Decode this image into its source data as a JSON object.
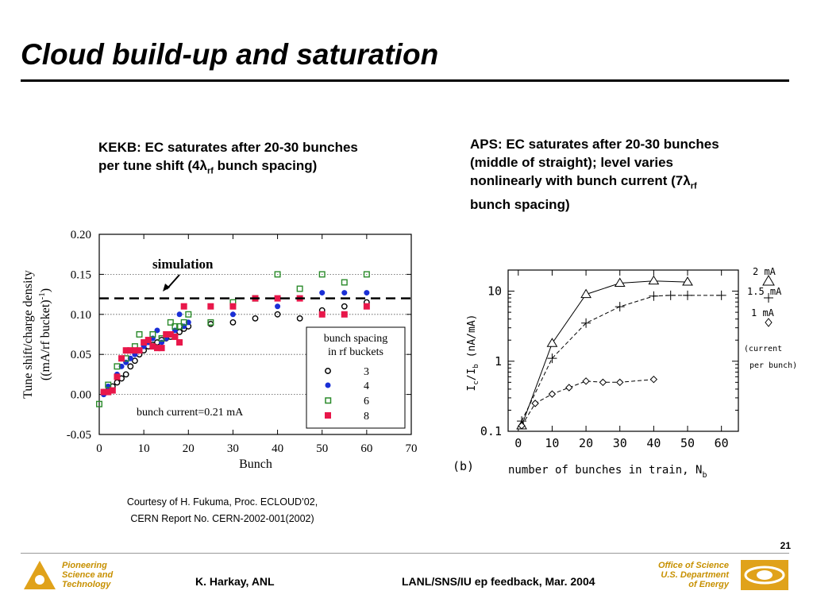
{
  "slide": {
    "title": "Cloud build-up and saturation",
    "caption_left_line1": "KEKB: EC saturates after 20-30 bunches",
    "caption_left_line2_pre": "per tune shift (4",
    "caption_left_lambda": "λ",
    "caption_left_sub": "rf",
    "caption_left_line2_post": " bunch spacing)",
    "caption_right_line1": "APS: EC saturates after 20-30 bunches",
    "caption_right_line2": "(middle of straight); level varies",
    "caption_right_line3_pre": "nonlinearly with bunch current (7",
    "caption_right_lambda": "λ",
    "caption_right_sub": "rf",
    "caption_right_line4": "bunch spacing)",
    "courtesy_line1": "Courtesy of H. Fukuma, Proc. ECLOUD’02,",
    "courtesy_line2": "CERN Report No. CERN-2002-001(2002)"
  },
  "footer": {
    "page_number": "21",
    "org_line1": "Pioneering",
    "org_line2": "Science and",
    "org_line3": "Technology",
    "author": "K. Harkay, ANL",
    "event": "LANL/SNS/IU ep feedback, Mar. 2004",
    "doe_line1": "Office of Science",
    "doe_line2": "U.S. Department",
    "doe_line3": "of Energy"
  },
  "chart_data": [
    {
      "type": "scatter",
      "xlabel": "Bunch",
      "ylabel_line1": "Tune shift/charge density",
      "ylabel_line2_pre": "((mA/rf bucket)",
      "ylabel_sup": "-1",
      "ylabel_line2_post": ")",
      "xlim": [
        0,
        70
      ],
      "ylim": [
        -0.05,
        0.2
      ],
      "x_ticks": [
        "0",
        "10",
        "20",
        "30",
        "40",
        "50",
        "60",
        "70"
      ],
      "y_ticks": [
        "0.20",
        "0.15",
        "0.10",
        "0.05",
        "0.00",
        "-0.05"
      ],
      "grid": "dotted horizontal",
      "simulation_level": 0.12,
      "annotation_simulation": "simulation",
      "annotation_current": "bunch current=0.21 mA",
      "legend_title_line1": "bunch spacing",
      "legend_title_line2": "in rf buckets",
      "legend_position": "lower-right",
      "series": [
        {
          "name": "3",
          "marker": "open-circle",
          "color": "#000000",
          "points": [
            [
              1,
              0.003
            ],
            [
              2,
              0.005
            ],
            [
              3,
              0.01
            ],
            [
              4,
              0.015
            ],
            [
              5,
              0.02
            ],
            [
              6,
              0.025
            ],
            [
              7,
              0.035
            ],
            [
              8,
              0.042
            ],
            [
              9,
              0.05
            ],
            [
              10,
              0.055
            ],
            [
              11,
              0.06
            ],
            [
              12,
              0.062
            ],
            [
              13,
              0.065
            ],
            [
              14,
              0.068
            ],
            [
              15,
              0.07
            ],
            [
              16,
              0.072
            ],
            [
              17,
              0.075
            ],
            [
              18,
              0.078
            ],
            [
              19,
              0.082
            ],
            [
              20,
              0.085
            ],
            [
              25,
              0.088
            ],
            [
              30,
              0.09
            ],
            [
              35,
              0.095
            ],
            [
              40,
              0.1
            ],
            [
              45,
              0.095
            ],
            [
              50,
              0.105
            ],
            [
              55,
              0.11
            ],
            [
              60,
              0.115
            ]
          ]
        },
        {
          "name": "4",
          "marker": "filled-circle",
          "color": "#1a2fd6",
          "points": [
            [
              1,
              0.0
            ],
            [
              2,
              0.01
            ],
            [
              4,
              0.025
            ],
            [
              5,
              0.035
            ],
            [
              6,
              0.04
            ],
            [
              7,
              0.045
            ],
            [
              8,
              0.05
            ],
            [
              9,
              0.055
            ],
            [
              10,
              0.06
            ],
            [
              11,
              0.065
            ],
            [
              12,
              0.07
            ],
            [
              13,
              0.08
            ],
            [
              14,
              0.065
            ],
            [
              15,
              0.07
            ],
            [
              16,
              0.075
            ],
            [
              17,
              0.08
            ],
            [
              18,
              0.1
            ],
            [
              19,
              0.085
            ],
            [
              20,
              0.09
            ],
            [
              30,
              0.1
            ],
            [
              40,
              0.11
            ],
            [
              50,
              0.127
            ],
            [
              55,
              0.127
            ],
            [
              60,
              0.127
            ]
          ]
        },
        {
          "name": "6",
          "marker": "open-square",
          "color": "#2a8a2a",
          "points": [
            [
              0,
              -0.012
            ],
            [
              2,
              0.012
            ],
            [
              4,
              0.035
            ],
            [
              6,
              0.045
            ],
            [
              8,
              0.06
            ],
            [
              9,
              0.075
            ],
            [
              12,
              0.075
            ],
            [
              14,
              0.07
            ],
            [
              16,
              0.09
            ],
            [
              17,
              0.085
            ],
            [
              18,
              0.085
            ],
            [
              19,
              0.09
            ],
            [
              20,
              0.1
            ],
            [
              25,
              0.09
            ],
            [
              30,
              0.115
            ],
            [
              35,
              0.12
            ],
            [
              40,
              0.15
            ],
            [
              45,
              0.132
            ],
            [
              50,
              0.15
            ],
            [
              55,
              0.14
            ],
            [
              60,
              0.15
            ]
          ]
        },
        {
          "name": "8",
          "marker": "filled-square",
          "color": "#e8174a",
          "points": [
            [
              1,
              0.003
            ],
            [
              2,
              0.003
            ],
            [
              3,
              0.005
            ],
            [
              4,
              0.022
            ],
            [
              5,
              0.045
            ],
            [
              6,
              0.055
            ],
            [
              7,
              0.055
            ],
            [
              8,
              0.055
            ],
            [
              9,
              0.055
            ],
            [
              10,
              0.065
            ],
            [
              11,
              0.068
            ],
            [
              12,
              0.06
            ],
            [
              13,
              0.058
            ],
            [
              14,
              0.058
            ],
            [
              15,
              0.075
            ],
            [
              16,
              0.075
            ],
            [
              17,
              0.072
            ],
            [
              18,
              0.065
            ],
            [
              19,
              0.11
            ],
            [
              25,
              0.11
            ],
            [
              30,
              0.11
            ],
            [
              35,
              0.12
            ],
            [
              40,
              0.12
            ],
            [
              45,
              0.12
            ],
            [
              50,
              0.1
            ],
            [
              55,
              0.1
            ],
            [
              60,
              0.11
            ]
          ]
        }
      ]
    },
    {
      "type": "line",
      "panel_label": "(b)",
      "xlabel_pre": "number of bunches in train, N",
      "xlabel_sub": "b",
      "ylabel_pre": "I",
      "ylabel_sub1": "c",
      "ylabel_mid": "/I",
      "ylabel_sub2": "b",
      "ylabel_post": " (nA/mA)",
      "xlim": [
        -3,
        65
      ],
      "ylim": [
        0.1,
        20
      ],
      "y_scale": "log",
      "x_ticks": [
        "0",
        "10",
        "20",
        "30",
        "40",
        "50",
        "60"
      ],
      "y_ticks": [
        "10",
        "1",
        "0.1"
      ],
      "legend_note_line1": "(current",
      "legend_note_line2": "per bunch)",
      "legend_position": "right-outside",
      "series": [
        {
          "name": "2 mA",
          "marker": "triangle",
          "line": "solid",
          "x": [
            1,
            10,
            20,
            30,
            40,
            50
          ],
          "y": [
            0.12,
            1.8,
            9,
            13,
            14,
            13.5
          ]
        },
        {
          "name": "1.5 mA",
          "marker": "plus",
          "line": "dashed",
          "x": [
            1,
            10,
            20,
            30,
            40,
            45,
            50,
            60
          ],
          "y": [
            0.14,
            1.1,
            3.5,
            6,
            8.5,
            8.7,
            8.7,
            8.7
          ]
        },
        {
          "name": "1 mA",
          "marker": "diamond",
          "line": "dashed",
          "x": [
            1,
            5,
            10,
            15,
            20,
            25,
            30,
            40
          ],
          "y": [
            0.12,
            0.25,
            0.34,
            0.42,
            0.52,
            0.5,
            0.5,
            0.55
          ]
        }
      ]
    }
  ]
}
